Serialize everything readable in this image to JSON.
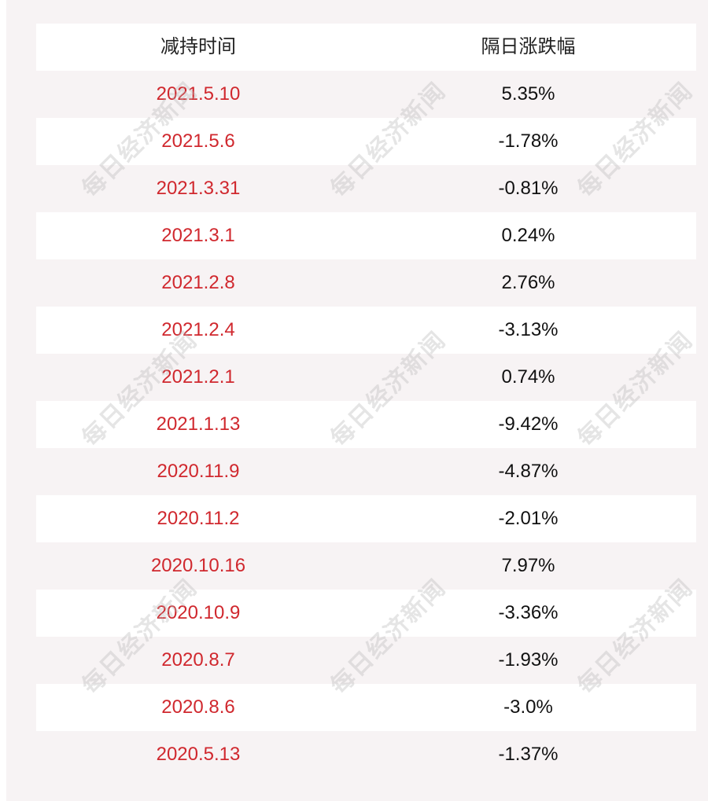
{
  "table": {
    "headers": [
      "减持时间",
      "隔日涨跌幅"
    ],
    "rows": [
      {
        "date": "2021.5.10",
        "change": "5.35%"
      },
      {
        "date": "2021.5.6",
        "change": "-1.78%"
      },
      {
        "date": "2021.3.31",
        "change": "-0.81%"
      },
      {
        "date": "2021.3.1",
        "change": "0.24%"
      },
      {
        "date": "2021.2.8",
        "change": "2.76%"
      },
      {
        "date": "2021.2.4",
        "change": "-3.13%"
      },
      {
        "date": "2021.2.1",
        "change": "0.74%"
      },
      {
        "date": "2021.1.13",
        "change": "-9.42%"
      },
      {
        "date": "2020.11.9",
        "change": "-4.87%"
      },
      {
        "date": "2020.11.2",
        "change": "-2.01%"
      },
      {
        "date": "2020.10.16",
        "change": "7.97%"
      },
      {
        "date": "2020.10.9",
        "change": "-3.36%"
      },
      {
        "date": "2020.8.7",
        "change": "-1.93%"
      },
      {
        "date": "2020.8.6",
        "change": "-3.0%"
      },
      {
        "date": "2020.5.13",
        "change": "-1.37%"
      }
    ]
  },
  "watermark": "每日经济新闻",
  "colors": {
    "date_text": "#d0282e",
    "value_text": "#111111",
    "shaded_row": "#f7f3f4",
    "white_row": "#ffffff"
  }
}
